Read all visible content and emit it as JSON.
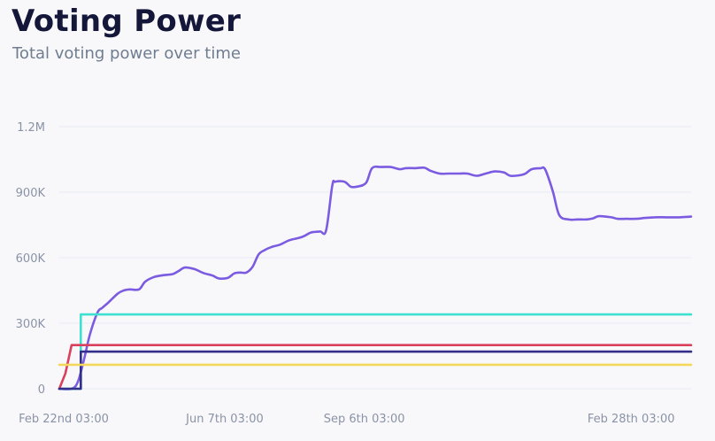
{
  "header": {
    "title": "Voting Power",
    "subtitle": "Total voting power over time"
  },
  "chart_data": {
    "type": "line",
    "title": "Voting Power",
    "subtitle": "Total voting power over time",
    "xlabel": "",
    "ylabel": "",
    "x_ticks": [
      "Feb 22nd 03:00",
      "Jun 7th 03:00",
      "Sep 6th 03:00",
      "Feb 28th 03:00"
    ],
    "x_tick_positions": [
      0,
      105,
      196,
      370
    ],
    "x_range": [
      0,
      412
    ],
    "y_ticks": [
      "0",
      "300K",
      "600K",
      "900K",
      "1.2M"
    ],
    "y_tick_values": [
      0,
      300000,
      600000,
      900000,
      1200000
    ],
    "ylim": [
      0,
      1200000
    ],
    "grid": true,
    "legend": "none",
    "series": [
      {
        "color": "#7b5ce1",
        "points": [
          [
            0,
            0
          ],
          [
            8,
            0
          ],
          [
            12,
            30000
          ],
          [
            16,
            130000
          ],
          [
            20,
            250000
          ],
          [
            25,
            350000
          ],
          [
            28,
            370000
          ],
          [
            32,
            395000
          ],
          [
            38,
            435000
          ],
          [
            42,
            450000
          ],
          [
            46,
            455000
          ],
          [
            52,
            455000
          ],
          [
            56,
            490000
          ],
          [
            62,
            512000
          ],
          [
            68,
            520000
          ],
          [
            74,
            525000
          ],
          [
            78,
            540000
          ],
          [
            82,
            555000
          ],
          [
            88,
            548000
          ],
          [
            94,
            530000
          ],
          [
            100,
            518000
          ],
          [
            104,
            505000
          ],
          [
            110,
            508000
          ],
          [
            114,
            528000
          ],
          [
            118,
            532000
          ],
          [
            122,
            532000
          ],
          [
            126,
            558000
          ],
          [
            130,
            615000
          ],
          [
            134,
            635000
          ],
          [
            138,
            648000
          ],
          [
            144,
            660000
          ],
          [
            150,
            680000
          ],
          [
            156,
            690000
          ],
          [
            160,
            700000
          ],
          [
            164,
            715000
          ],
          [
            170,
            720000
          ],
          [
            174,
            725000
          ],
          [
            178,
            930000
          ],
          [
            180,
            948000
          ],
          [
            186,
            948000
          ],
          [
            190,
            925000
          ],
          [
            194,
            925000
          ],
          [
            200,
            942000
          ],
          [
            204,
            1010000
          ],
          [
            210,
            1015000
          ],
          [
            216,
            1015000
          ],
          [
            222,
            1005000
          ],
          [
            226,
            1010000
          ],
          [
            232,
            1010000
          ],
          [
            238,
            1012000
          ],
          [
            242,
            998000
          ],
          [
            248,
            985000
          ],
          [
            254,
            985000
          ],
          [
            260,
            985000
          ],
          [
            266,
            985000
          ],
          [
            272,
            975000
          ],
          [
            278,
            985000
          ],
          [
            284,
            995000
          ],
          [
            290,
            990000
          ],
          [
            294,
            975000
          ],
          [
            300,
            977000
          ],
          [
            304,
            985000
          ],
          [
            308,
            1005000
          ],
          [
            314,
            1010000
          ],
          [
            316,
            1012000
          ],
          [
            318,
            985000
          ],
          [
            322,
            900000
          ],
          [
            326,
            795000
          ],
          [
            332,
            775000
          ],
          [
            338,
            775000
          ],
          [
            344,
            775000
          ],
          [
            348,
            780000
          ],
          [
            352,
            790000
          ],
          [
            360,
            785000
          ],
          [
            364,
            778000
          ],
          [
            370,
            778000
          ],
          [
            376,
            778000
          ],
          [
            382,
            782000
          ],
          [
            388,
            785000
          ],
          [
            396,
            785000
          ],
          [
            404,
            785000
          ],
          [
            412,
            788000
          ]
        ]
      },
      {
        "color": "#3ee0cf",
        "points": [
          [
            0,
            0
          ],
          [
            14,
            0
          ],
          [
            14,
            340000
          ],
          [
            412,
            340000
          ]
        ]
      },
      {
        "color": "#d8405c",
        "points": [
          [
            0,
            0
          ],
          [
            4,
            70000
          ],
          [
            8,
            200000
          ],
          [
            412,
            200000
          ]
        ]
      },
      {
        "color": "#322e8a",
        "points": [
          [
            0,
            0
          ],
          [
            14,
            0
          ],
          [
            14,
            170000
          ],
          [
            412,
            170000
          ]
        ]
      },
      {
        "color": "#f3d85c",
        "points": [
          [
            0,
            110000
          ],
          [
            412,
            110000
          ]
        ]
      }
    ]
  }
}
